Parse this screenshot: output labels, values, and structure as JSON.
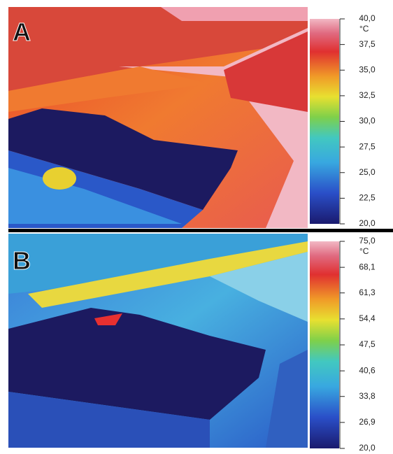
{
  "panels": [
    {
      "label": "A",
      "unit": "°C",
      "colorbar": {
        "lim": [
          20,
          40
        ],
        "ticks": [
          {
            "value": 40,
            "label": "40,0"
          },
          {
            "value": 37.5,
            "label": "37,5"
          },
          {
            "value": 35,
            "label": "35,0"
          },
          {
            "value": 32.5,
            "label": "32,5"
          },
          {
            "value": 30,
            "label": "30,0"
          },
          {
            "value": 27.5,
            "label": "27,5"
          },
          {
            "value": 25,
            "label": "25,0"
          },
          {
            "value": 22.5,
            "label": "22,5"
          },
          {
            "value": 20,
            "label": "20,0"
          }
        ]
      }
    },
    {
      "label": "B",
      "unit": "°C",
      "colorbar": {
        "lim": [
          20,
          75
        ],
        "ticks": [
          {
            "value": 75,
            "label": "75,0"
          },
          {
            "value": 68.1,
            "label": "68,1"
          },
          {
            "value": 61.3,
            "label": "61,3"
          },
          {
            "value": 54.4,
            "label": "54,4"
          },
          {
            "value": 47.5,
            "label": "47,5"
          },
          {
            "value": 40.6,
            "label": "40,6"
          },
          {
            "value": 33.8,
            "label": "33,8"
          },
          {
            "value": 26.9,
            "label": "26,9"
          },
          {
            "value": 20,
            "label": "20,0"
          }
        ]
      }
    }
  ]
}
